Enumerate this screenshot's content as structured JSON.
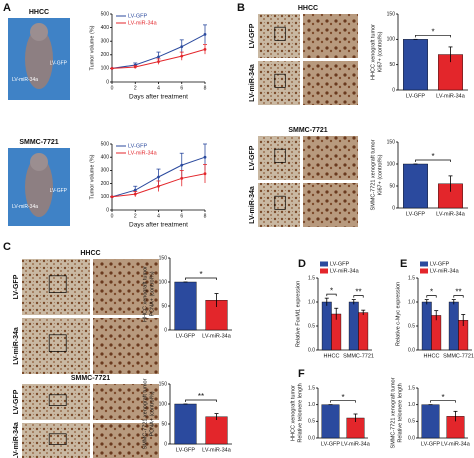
{
  "figure": {
    "panels": [
      "A",
      "B",
      "C",
      "D",
      "E",
      "F"
    ],
    "mouse": [
      {
        "title": "HHCC",
        "labels": [
          "LV-GFP",
          "LV-miR-34a"
        ]
      },
      {
        "title": "SMMC-7721",
        "labels": [
          "LV-GFP",
          "LV-miR-34a"
        ]
      }
    ],
    "micro": [
      {
        "title": "HHCC",
        "rows": [
          "LV-GFP",
          "LV-miR-34a"
        ]
      },
      {
        "title": "SMMC-7721",
        "rows": [
          "LV-GFP",
          "LV-miR-34a"
        ]
      },
      {
        "title": "HHCC",
        "rows": [
          "LV-GFP",
          "LV-miR-34a"
        ]
      },
      {
        "title": "SMMC-7721",
        "rows": [
          "LV-GFP",
          "LV-miR-34a"
        ]
      }
    ]
  },
  "chart_data": [
    {
      "type": "line",
      "ylabel": [
        "Tumor volume (%)"
      ],
      "xlabel": "Days after treatment",
      "x": [
        0,
        2,
        4,
        6,
        8
      ],
      "xlim": [
        0,
        8
      ],
      "xticks": [
        0,
        2,
        4,
        6,
        8
      ],
      "ylim": [
        0,
        500
      ],
      "yticks": [
        0,
        100,
        200,
        300,
        400,
        500
      ],
      "series": [
        {
          "name": "LV-GFP",
          "color": "#2b4a9e",
          "values": [
            100,
            125,
            185,
            260,
            350
          ],
          "errors": [
            0,
            15,
            35,
            50,
            70
          ]
        },
        {
          "name": "LV-miR-34a",
          "color": "#e3262b",
          "values": [
            100,
            110,
            150,
            190,
            240
          ],
          "errors": [
            0,
            10,
            20,
            30,
            35
          ]
        }
      ]
    },
    {
      "type": "line",
      "ylabel": [
        "Tumor volume (%)"
      ],
      "xlabel": "Days after treatment",
      "x": [
        0,
        2,
        4,
        6,
        8
      ],
      "xlim": [
        0,
        8
      ],
      "xticks": [
        0,
        2,
        4,
        6,
        8
      ],
      "ylim": [
        0,
        500
      ],
      "yticks": [
        0,
        100,
        200,
        300,
        400,
        500
      ],
      "series": [
        {
          "name": "LV-GFP",
          "color": "#2b4a9e",
          "values": [
            100,
            150,
            250,
            340,
            400
          ],
          "errors": [
            0,
            30,
            60,
            90,
            100
          ]
        },
        {
          "name": "LV-miR-34a",
          "color": "#e3262b",
          "values": [
            100,
            120,
            180,
            240,
            275
          ],
          "errors": [
            0,
            20,
            40,
            60,
            70
          ]
        }
      ]
    },
    {
      "type": "bar",
      "ylabel": [
        "HHCC xenograft tumor",
        "Ki67+ (control%)"
      ],
      "categories": [
        "LV-GFP",
        "LV-miR-34a"
      ],
      "values": [
        100,
        70
      ],
      "errors": [
        0,
        15
      ],
      "colors": [
        "#2b4a9e",
        "#e3262b"
      ],
      "ylim": [
        0,
        150
      ],
      "yticks": [
        0,
        50,
        100,
        150
      ],
      "annotations": [
        "*"
      ]
    },
    {
      "type": "bar",
      "ylabel": [
        "SMMC-7721 xenograft tumor",
        "Ki67+ (control%)"
      ],
      "categories": [
        "LV-GFP",
        "LV-miR-34a"
      ],
      "values": [
        100,
        55
      ],
      "errors": [
        0,
        18
      ],
      "colors": [
        "#2b4a9e",
        "#e3262b"
      ],
      "ylim": [
        0,
        150
      ],
      "yticks": [
        0,
        50,
        100,
        150
      ],
      "annotations": [
        "*"
      ]
    },
    {
      "type": "bar",
      "ylabel": [
        "HHCC xenograft tumor",
        "PCNA+ (control%)"
      ],
      "categories": [
        "LV-GFP",
        "LV-miR-34a"
      ],
      "values": [
        100,
        62
      ],
      "errors": [
        0,
        14
      ],
      "colors": [
        "#2b4a9e",
        "#e3262b"
      ],
      "ylim": [
        0,
        150
      ],
      "yticks": [
        0,
        50,
        100,
        150
      ],
      "annotations": [
        "*"
      ]
    },
    {
      "type": "bar",
      "ylabel": [
        "SMMC-7721 xenograft tumor",
        "PCNA+ (control%)"
      ],
      "categories": [
        "LV-GFP",
        "LV-miR-34a"
      ],
      "values": [
        100,
        68
      ],
      "errors": [
        0,
        8
      ],
      "colors": [
        "#2b4a9e",
        "#e3262b"
      ],
      "ylim": [
        0,
        150
      ],
      "yticks": [
        0,
        50,
        100,
        150
      ],
      "annotations": [
        "**"
      ]
    },
    {
      "type": "bar",
      "ylabel": [
        "Relative FoxM1 expression"
      ],
      "categories": [
        "HHCC",
        "SMMC-7721"
      ],
      "series": [
        {
          "name": "LV-GFP",
          "color": "#2b4a9e",
          "values": [
            1.0,
            1.0
          ],
          "errors": [
            0.08,
            0.05
          ]
        },
        {
          "name": "LV-miR-34a",
          "color": "#e3262b",
          "values": [
            0.75,
            0.78
          ],
          "errors": [
            0.12,
            0.05
          ]
        }
      ],
      "ylim": [
        0,
        1.5
      ],
      "yticks": [
        {
          "value": 0,
          "label": "0.0"
        },
        0.5,
        {
          "value": 1,
          "label": "1.0"
        },
        1.5
      ],
      "annotations": [
        "*",
        "**"
      ]
    },
    {
      "type": "bar",
      "ylabel": [
        "Relative c-Myc expression"
      ],
      "categories": [
        "HHCC",
        "SMMC-7721"
      ],
      "series": [
        {
          "name": "LV-GFP",
          "color": "#2b4a9e",
          "values": [
            1.0,
            1.0
          ],
          "errors": [
            0.05,
            0.05
          ]
        },
        {
          "name": "LV-miR-34a",
          "color": "#e3262b",
          "values": [
            0.72,
            0.62
          ],
          "errors": [
            0.1,
            0.12
          ]
        }
      ],
      "ylim": [
        0,
        1.5
      ],
      "yticks": [
        {
          "value": 0,
          "label": "0.0"
        },
        0.5,
        {
          "value": 1,
          "label": "1.0"
        },
        1.5
      ],
      "annotations": [
        "*",
        "**"
      ]
    },
    {
      "type": "bar",
      "ylabel": [
        "HHCC xenograft tumor",
        "Relative telomere length"
      ],
      "categories": [
        "LV-GFP",
        "LV-miR-34a"
      ],
      "values": [
        1.0,
        0.6
      ],
      "errors": [
        0,
        0.12
      ],
      "colors": [
        "#2b4a9e",
        "#e3262b"
      ],
      "ylim": [
        0,
        1.5
      ],
      "yticks": [
        {
          "value": 0,
          "label": "0.0"
        },
        0.5,
        {
          "value": 1,
          "label": "1.0"
        },
        1.5
      ],
      "annotations": [
        "*"
      ]
    },
    {
      "type": "bar",
      "ylabel": [
        "SMMC-7721 xenograft tumor",
        "Relative telomere length"
      ],
      "categories": [
        "LV-GFP",
        "LV-miR-34a"
      ],
      "values": [
        1.0,
        0.65
      ],
      "errors": [
        0,
        0.15
      ],
      "colors": [
        "#2b4a9e",
        "#e3262b"
      ],
      "ylim": [
        0,
        1.5
      ],
      "yticks": [
        {
          "value": 0,
          "label": "0.0"
        },
        0.5,
        {
          "value": 1,
          "label": "1.0"
        },
        1.5
      ],
      "annotations": [
        "*"
      ]
    }
  ]
}
